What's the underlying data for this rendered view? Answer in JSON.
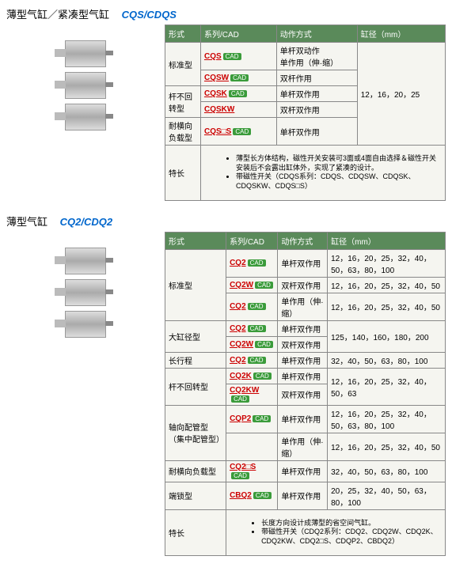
{
  "cqs": {
    "title_cn": "薄型气缸／紧凑型气缸",
    "title_model": "CQS/CDQS",
    "headers": [
      "形式",
      "系列/CAD",
      "动作方式",
      "缸径（mm）"
    ],
    "rows": [
      {
        "form": "标准型",
        "formSpan": 2,
        "series": "CQS",
        "cad": true,
        "action": "单杆双动作\n单作用（伸·缩）",
        "boreSpan": 5,
        "bore": "12，16，20，25"
      },
      {
        "series": "CQSW",
        "cad": true,
        "action": "双杆作用"
      },
      {
        "form": "杆不回转型",
        "formSpan": 2,
        "series": "CQSK",
        "cad": true,
        "action": "单杆双作用"
      },
      {
        "series": "CQSKW",
        "action": "双杆双作用"
      },
      {
        "form": "耐横向负载型",
        "series": "CQS□S",
        "cad": true,
        "action": "单杆双作用"
      }
    ],
    "featLabel": "特长",
    "feat": [
      "薄型长方体结构，磁性开关安装可3面或4面自由选择＆磁性开关安装后不会露出缸体外，实现了紧凑的设计。",
      "带磁性开关（CDQS系列：CDQS、CDQSW、CDQSK、CDQSKW、CDQS□S）"
    ]
  },
  "cq2": {
    "title_cn": "薄型气缸",
    "title_model": "CQ2/CDQ2",
    "headers": [
      "形式",
      "系列/CAD",
      "动作方式",
      "缸径（mm）"
    ],
    "rows": [
      {
        "form": "标准型",
        "formSpan": 3,
        "series": "CQ2",
        "cad": true,
        "action": "单杆双作用",
        "bore": "12，16，20，25，32，40，50，63，80，100"
      },
      {
        "series": "CQ2W",
        "cad": true,
        "action": "双杆双作用",
        "bore": "12，16，20，25，32，40，50"
      },
      {
        "series": "CQ2",
        "cad": true,
        "action": "单作用（伸·缩）",
        "bore": "12，16，20，25，32，40，50"
      },
      {
        "form": "大缸径型",
        "formSpan": 2,
        "series": "CQ2",
        "cad": true,
        "action": "单杆双作用",
        "bore": "125，140，160，180，200",
        "boreSpan": 2
      },
      {
        "series": "CQ2W",
        "cad": true,
        "action": "双杆双作用"
      },
      {
        "form": "长行程",
        "series": "CQ2",
        "cad": true,
        "action": "单杆双作用",
        "bore": "32，40，50，63，80，100"
      },
      {
        "form": "杆不回转型",
        "formSpan": 2,
        "series": "CQ2K",
        "cad": true,
        "action": "单杆双作用",
        "bore": "12，16，20，25，32，40，50，63",
        "boreSpan": 2
      },
      {
        "series": "CQ2KW",
        "cad": true,
        "action": "双杆双作用"
      },
      {
        "form": "轴向配管型（集中配管型）",
        "formSpan": 2,
        "series": "CQP2",
        "cad": true,
        "action": "单杆双作用",
        "bore": "12，16，20，25，32，40，50，63，80，100"
      },
      {
        "action": "单作用（伸·缩）",
        "bore": "12，16，20，25，32，40，50"
      },
      {
        "form": "耐横向负载型",
        "series": "CQ2□S",
        "cad": true,
        "action": "单杆双作用",
        "bore": "32，40，50，63，80，100"
      },
      {
        "form": "端锁型",
        "series": "CBQ2",
        "cad": true,
        "action": "单杆双作用",
        "bore": "20，25，32，40，50，63，80，100"
      }
    ],
    "featLabel": "特长",
    "feat": [
      "长度方向设计成薄型的省空间气缸。",
      "带磁性开关（CDQ2系列：CDQ2、CDQ2W、CDQ2K、CDQ2KW、CDQ2□S、CDQP2、CBDQ2）"
    ]
  }
}
